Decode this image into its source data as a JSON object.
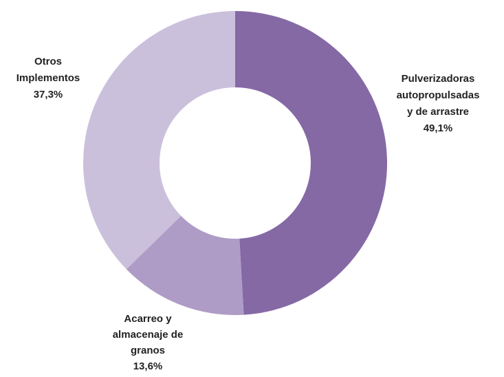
{
  "chart_data": {
    "type": "donut",
    "categories": [
      "Pulverizadoras autopropulsadas y de arrastre",
      "Acarreo y almacenaje de granos",
      "Otros Implementos"
    ],
    "values": [
      49.1,
      13.6,
      37.3
    ],
    "value_labels": [
      "49,1%",
      "13,6%",
      "37,3%"
    ],
    "colors": [
      "#8569a5",
      "#ae9cc6",
      "#cbc0dc"
    ]
  }
}
